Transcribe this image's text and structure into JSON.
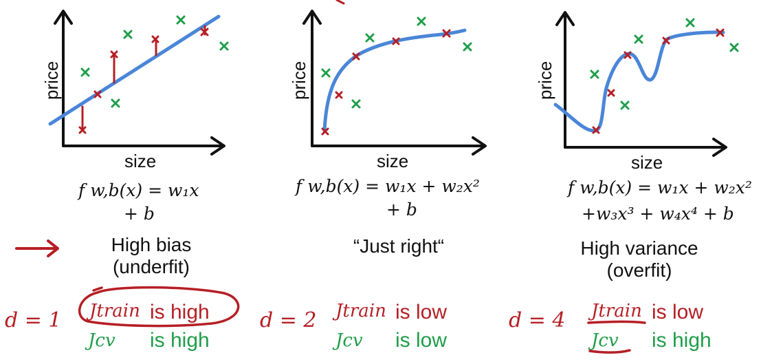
{
  "colors": {
    "red": "#b51f25",
    "green": "#1f9e4a",
    "curve": "#4a86d8",
    "axis": "#111111"
  },
  "panels": [
    {
      "ylabel": "price",
      "xlabel": "size",
      "formula_line1": "f w,b(x) = w₁x",
      "formula_line2": "+ b",
      "fit_line1": "High bias",
      "fit_line2": "(underfit)",
      "degree": "d = 1",
      "jtrain_label": "Jtrain",
      "jtrain_status": "is high",
      "jcv_label": "Jcv",
      "jcv_status": "is high"
    },
    {
      "ylabel": "price",
      "xlabel": "size",
      "formula_line1": "f w,b(x) = w₁x + w₂x²",
      "formula_line2": "+ b",
      "fit_line1": "“Just right“",
      "fit_line2": "",
      "degree": "d = 2",
      "jtrain_label": "Jtrain",
      "jtrain_status": "is low",
      "jcv_label": "Jcv",
      "jcv_status": "is low"
    },
    {
      "ylabel": "price",
      "xlabel": "size",
      "formula_line1": "f w,b(x) = w₁x + w₂x²",
      "formula_line2": "+w₃x³ + w₄x⁴ + b",
      "fit_line1": "High variance",
      "fit_line2": "(overfit)",
      "degree": "d = 4",
      "jtrain_label": "Jtrain",
      "jtrain_status": "is low",
      "jcv_label": "Jcv",
      "jcv_status": "is high"
    }
  ],
  "arrow_icon": "right-arrow-icon"
}
